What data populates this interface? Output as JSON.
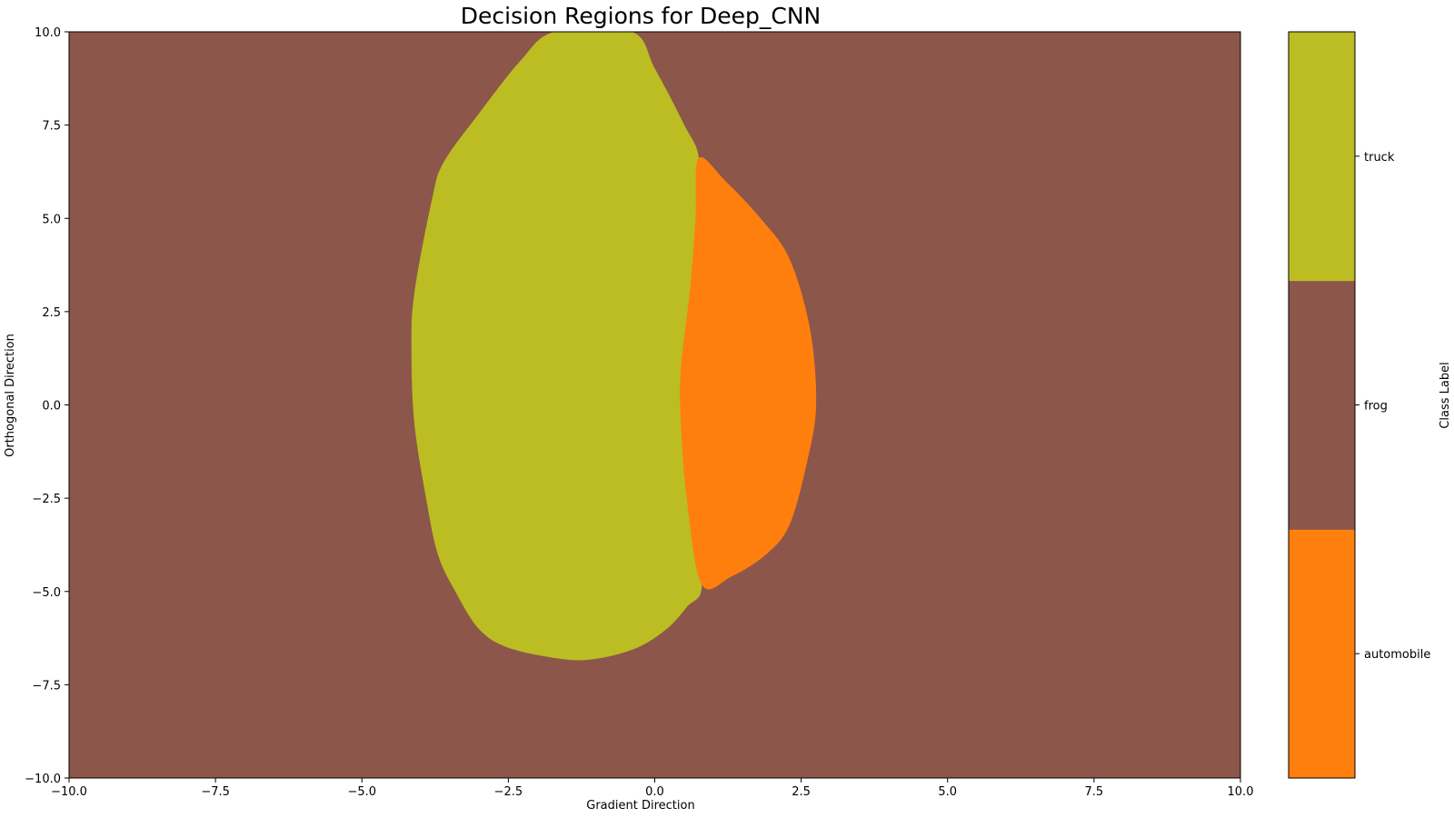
{
  "chart_data": {
    "type": "heatmap",
    "title": "Decision Regions for Deep_CNN",
    "xlabel": "Gradient Direction",
    "ylabel": "Orthogonal Direction",
    "xlim": [
      -10,
      10
    ],
    "ylim": [
      -10,
      10
    ],
    "x_ticks": [
      -10,
      -7.5,
      -5,
      -2.5,
      0,
      2.5,
      5,
      7.5,
      10
    ],
    "y_ticks": [
      -10,
      -7.5,
      -5,
      -2.5,
      0,
      2.5,
      5,
      7.5,
      10
    ],
    "x_tick_labels": [
      "−10.0",
      "−7.5",
      "−5.0",
      "−2.5",
      "0.0",
      "2.5",
      "5.0",
      "7.5",
      "10.0"
    ],
    "y_tick_labels": [
      "−10.0",
      "−7.5",
      "−5.0",
      "−2.5",
      "0.0",
      "2.5",
      "5.0",
      "7.5",
      "10.0"
    ],
    "grid": false,
    "background_class": "frog",
    "classes": [
      {
        "label": "automobile",
        "color": "#ff7f0e"
      },
      {
        "label": "frog",
        "color": "#8c564b"
      },
      {
        "label": "truck",
        "color": "#bcbd22"
      }
    ],
    "colorbar": {
      "label": "Class Label",
      "position": "right"
    },
    "regions": [
      {
        "class": "truck",
        "boundary": [
          [
            -1.7,
            10.0
          ],
          [
            -0.4,
            10.0
          ],
          [
            0.0,
            9.0
          ],
          [
            0.5,
            7.5
          ],
          [
            0.75,
            6.6
          ],
          [
            0.7,
            5.0
          ],
          [
            0.6,
            3.0
          ],
          [
            0.45,
            1.0
          ],
          [
            0.45,
            -0.5
          ],
          [
            0.55,
            -2.5
          ],
          [
            0.8,
            -4.8
          ],
          [
            0.55,
            -5.4
          ],
          [
            0.2,
            -6.0
          ],
          [
            -0.3,
            -6.5
          ],
          [
            -1.0,
            -6.8
          ],
          [
            -1.6,
            -6.8
          ],
          [
            -2.5,
            -6.5
          ],
          [
            -3.0,
            -6.0
          ],
          [
            -3.4,
            -5.0
          ],
          [
            -3.7,
            -4.0
          ],
          [
            -3.9,
            -2.5
          ],
          [
            -4.1,
            -0.5
          ],
          [
            -4.15,
            1.5
          ],
          [
            -4.1,
            3.0
          ],
          [
            -3.8,
            5.5
          ],
          [
            -3.6,
            6.5
          ],
          [
            -3.0,
            7.8
          ],
          [
            -2.3,
            9.2
          ]
        ]
      },
      {
        "class": "automobile",
        "boundary": [
          [
            0.75,
            6.6
          ],
          [
            1.2,
            6.0
          ],
          [
            1.8,
            5.0
          ],
          [
            2.3,
            3.9
          ],
          [
            2.65,
            2.0
          ],
          [
            2.75,
            0.0
          ],
          [
            2.6,
            -1.5
          ],
          [
            2.3,
            -3.2
          ],
          [
            1.9,
            -4.0
          ],
          [
            1.3,
            -4.6
          ],
          [
            0.8,
            -4.8
          ],
          [
            0.55,
            -2.5
          ],
          [
            0.45,
            -0.5
          ],
          [
            0.45,
            1.0
          ],
          [
            0.6,
            3.0
          ],
          [
            0.7,
            5.0
          ]
        ]
      }
    ]
  }
}
